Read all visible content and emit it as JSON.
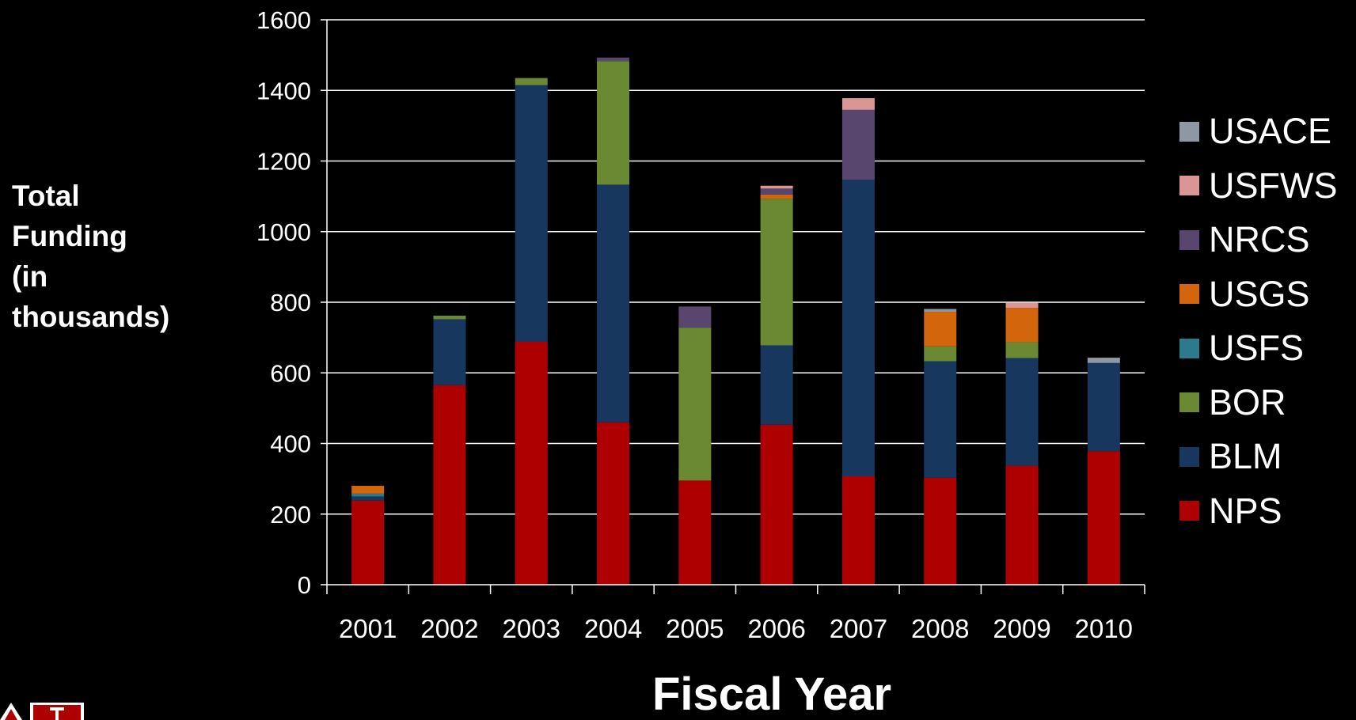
{
  "chart_data": {
    "type": "bar",
    "stacked": true,
    "title": "",
    "xlabel": "Fiscal Year",
    "ylabel": "Total\nFunding\n(in\nthousands)",
    "ylim": [
      0,
      1600
    ],
    "yticks": [
      0,
      200,
      400,
      600,
      800,
      1000,
      1200,
      1400,
      1600
    ],
    "grid": true,
    "legend_position": "right",
    "categories": [
      "2001",
      "2002",
      "2003",
      "2004",
      "2005",
      "2006",
      "2007",
      "2008",
      "2009",
      "2010"
    ],
    "series": [
      {
        "name": "NPS",
        "color": "#AE0000",
        "values": [
          238,
          565,
          688,
          460,
          295,
          453,
          307,
          303,
          337,
          378
        ]
      },
      {
        "name": "BLM",
        "color": "#17375E",
        "values": [
          12,
          187,
          727,
          673,
          0,
          225,
          840,
          330,
          305,
          250
        ]
      },
      {
        "name": "BOR",
        "color": "#6B8833",
        "values": [
          0,
          10,
          20,
          350,
          433,
          415,
          0,
          42,
          45,
          0
        ]
      },
      {
        "name": "USFS",
        "color": "#2C7A8C",
        "values": [
          8,
          0,
          0,
          0,
          0,
          0,
          0,
          0,
          0,
          0
        ]
      },
      {
        "name": "USGS",
        "color": "#D3650D",
        "values": [
          22,
          0,
          0,
          0,
          0,
          12,
          0,
          98,
          97,
          0
        ]
      },
      {
        "name": "NRCS",
        "color": "#59466E",
        "values": [
          0,
          0,
          0,
          10,
          60,
          17,
          198,
          0,
          0,
          0
        ]
      },
      {
        "name": "USFWS",
        "color": "#D99694",
        "values": [
          0,
          0,
          0,
          0,
          0,
          8,
          33,
          0,
          15,
          0
        ]
      },
      {
        "name": "USACE",
        "color": "#8E98A5",
        "values": [
          0,
          0,
          0,
          0,
          0,
          0,
          0,
          8,
          0,
          15
        ]
      }
    ]
  }
}
